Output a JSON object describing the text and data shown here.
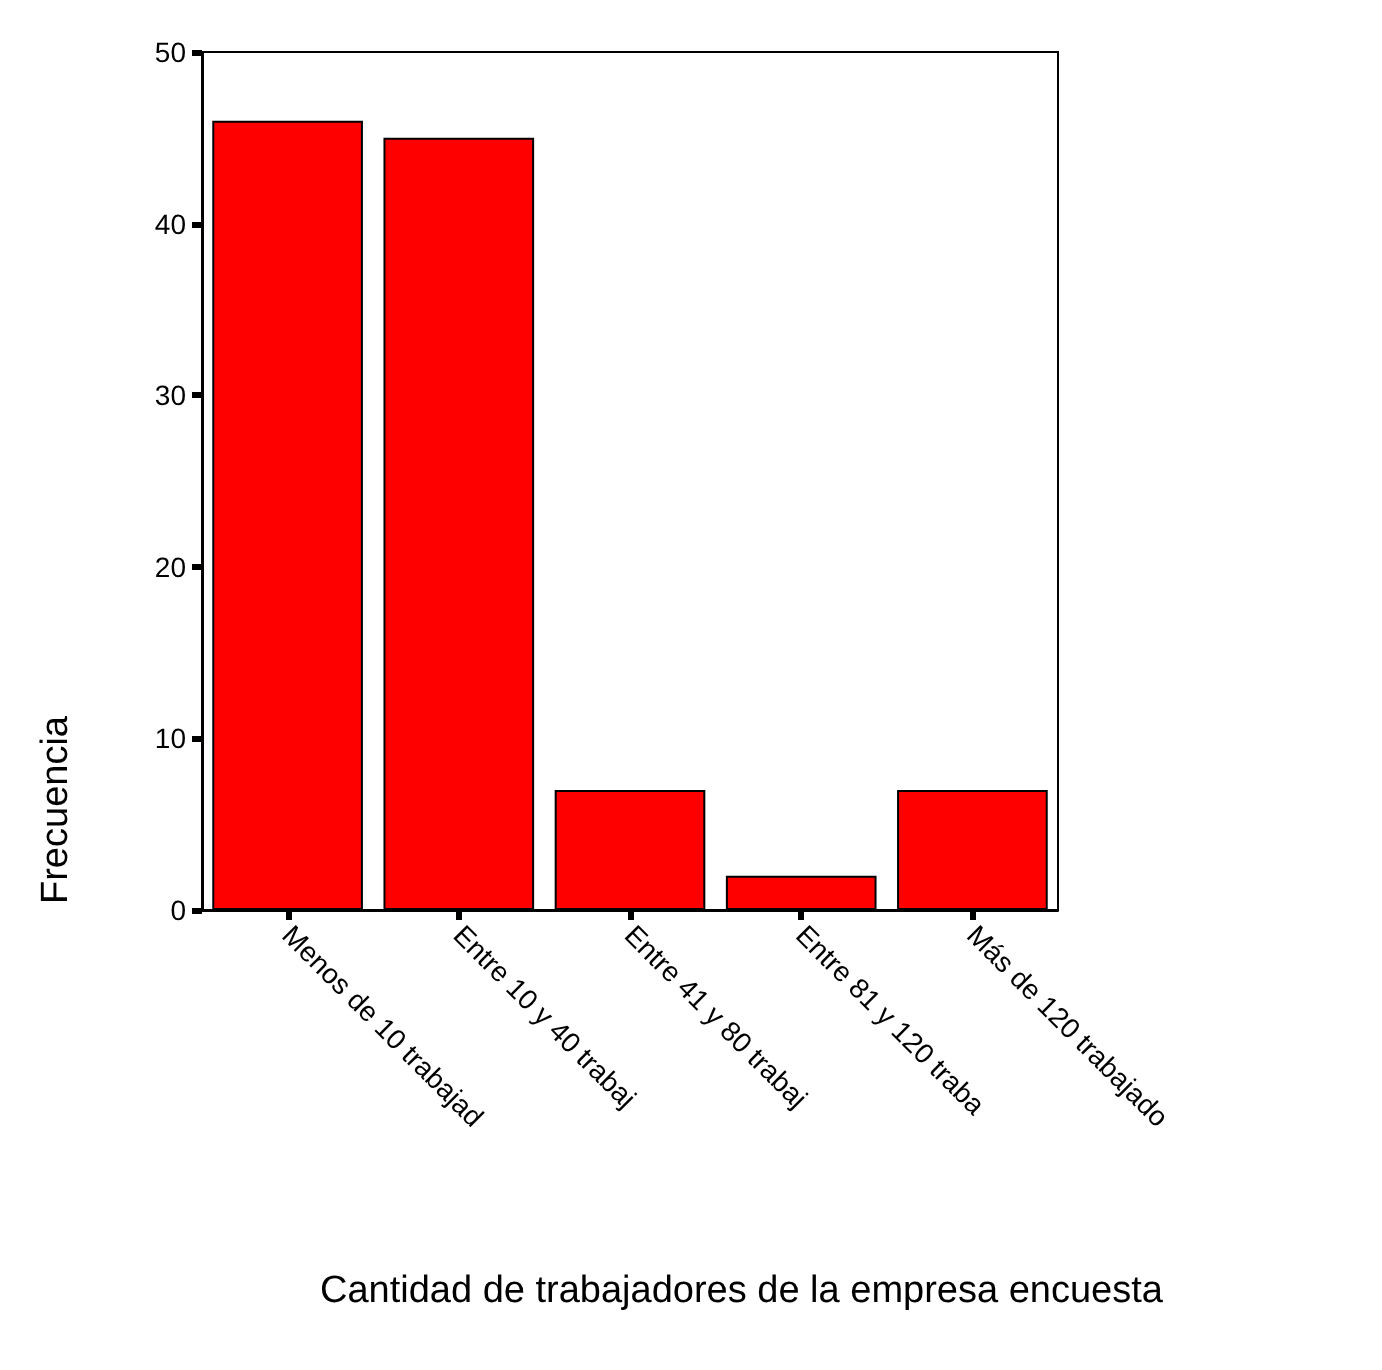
{
  "chart_data": {
    "type": "bar",
    "xlabel": "Cantidad de trabajadores de la empresa encuesta",
    "ylabel": "Frecuencia",
    "categories": [
      "Menos de 10 trabajad",
      "Entre 10 y 40 trabaj",
      "Entre 41 y 80 trabaj",
      "Entre 81 y 120 traba",
      "Más de 120 trabajado"
    ],
    "values": [
      46,
      45,
      7,
      2,
      7
    ],
    "color": "#ff0000",
    "ylim": [
      0,
      50
    ],
    "yticks": [
      0,
      10,
      20,
      30,
      40,
      50
    ],
    "grid": false
  }
}
